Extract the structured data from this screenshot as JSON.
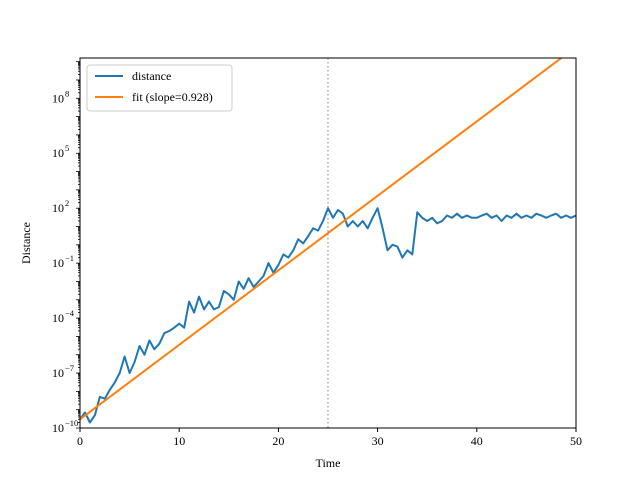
{
  "chart_data": {
    "type": "line",
    "title": "",
    "xlabel": "Time",
    "ylabel": "Distance",
    "xlim": [
      0,
      50
    ],
    "ylim_log10": [
      -10,
      10.2
    ],
    "yscale": "log",
    "grid": false,
    "legend_position": "top-left",
    "xticks": [
      {
        "value": 0,
        "label": "0"
      },
      {
        "value": 10,
        "label": "10"
      },
      {
        "value": 20,
        "label": "20"
      },
      {
        "value": 30,
        "label": "30"
      },
      {
        "value": 40,
        "label": "40"
      },
      {
        "value": 50,
        "label": "50"
      }
    ],
    "yticks": [
      {
        "log10": -10,
        "base": "10",
        "exp": "−10"
      },
      {
        "log10": -7,
        "base": "10",
        "exp": "−7"
      },
      {
        "log10": -4,
        "base": "10",
        "exp": "−4"
      },
      {
        "log10": -1,
        "base": "10",
        "exp": "−1"
      },
      {
        "log10": 2,
        "base": "10",
        "exp": "2"
      },
      {
        "log10": 5,
        "base": "10",
        "exp": "5"
      },
      {
        "log10": 8,
        "base": "10",
        "exp": "8"
      }
    ],
    "vline": {
      "x": 25,
      "color": "#808080",
      "style": "dotted"
    },
    "series": [
      {
        "name": "distance",
        "color": "#1f77b4",
        "x": [
          0,
          0.5,
          1,
          1.5,
          2,
          2.5,
          3,
          3.5,
          4,
          4.5,
          5,
          5.5,
          6,
          6.5,
          7,
          7.5,
          8,
          8.5,
          9,
          9.5,
          10,
          10.5,
          11,
          11.5,
          12,
          12.5,
          13,
          13.5,
          14,
          14.5,
          15,
          15.5,
          16,
          16.5,
          17,
          17.5,
          18,
          18.5,
          19,
          19.5,
          20,
          20.5,
          21,
          21.5,
          22,
          22.5,
          23,
          23.5,
          24,
          24.5,
          25,
          25.5,
          26,
          26.5,
          27,
          27.5,
          28,
          28.5,
          29,
          29.5,
          30,
          30.5,
          31,
          31.5,
          32,
          32.5,
          33,
          33.5,
          34,
          34.5,
          35,
          35.5,
          36,
          36.5,
          37,
          37.5,
          38,
          38.5,
          39,
          39.5,
          40,
          40.5,
          41,
          41.5,
          42,
          42.5,
          43,
          43.5,
          44,
          44.5,
          45,
          45.5,
          46,
          46.5,
          47,
          47.5,
          48,
          48.5,
          49,
          49.5,
          50
        ],
        "y": [
          3e-10,
          7e-10,
          2e-10,
          5e-10,
          5e-09,
          4e-09,
          1.2e-08,
          3e-08,
          1e-07,
          8e-07,
          1e-07,
          4e-07,
          3e-06,
          1e-06,
          6e-06,
          2e-06,
          4e-06,
          1.5e-05,
          2e-05,
          3e-05,
          5e-05,
          3e-05,
          0.0008,
          0.0002,
          0.0015,
          0.0003,
          0.0008,
          0.0003,
          0.0004,
          0.003,
          0.002,
          0.001,
          0.01,
          0.004,
          0.015,
          0.005,
          0.01,
          0.02,
          0.1,
          0.03,
          0.08,
          0.3,
          0.2,
          0.5,
          2,
          1.2,
          3,
          8,
          6,
          20,
          100.0,
          30.0,
          80.0,
          50.0,
          10.0,
          20.0,
          10.0,
          20.0,
          8,
          30.0,
          100.0,
          8,
          0.5,
          1,
          0.8,
          0.2,
          0.5,
          0.3,
          60.0,
          30.0,
          20.0,
          30.0,
          15.0,
          20.0,
          40.0,
          30.0,
          50.0,
          30.0,
          40.0,
          30.0,
          30.0,
          40.0,
          50.0,
          30.0,
          40.0,
          20.0,
          40.0,
          30.0,
          50.0,
          30.0,
          40.0,
          30.0,
          50.0,
          40.0,
          30.0,
          40.0,
          50.0,
          30.0,
          40.0,
          30.0,
          40.0
        ]
      },
      {
        "name": "fit (slope=0.928)",
        "color": "#ff7f0e",
        "x": [
          0,
          50
        ],
        "y": [
          3e-10,
          64000000000.0
        ]
      }
    ]
  }
}
